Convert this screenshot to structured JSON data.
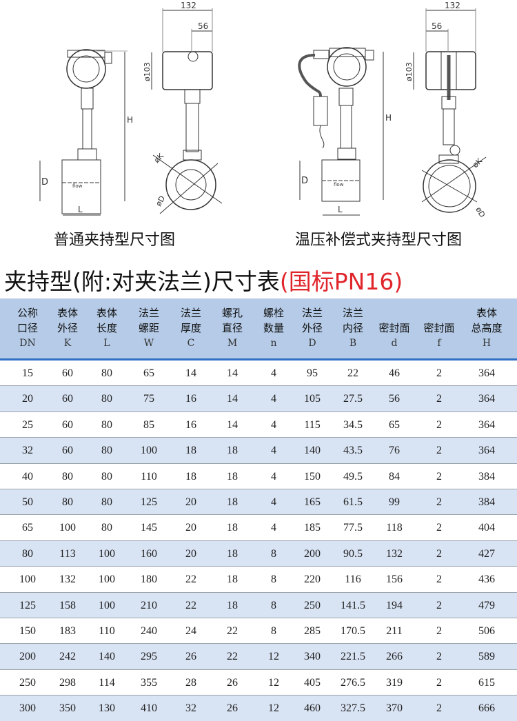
{
  "drawings": {
    "left_caption": "普通夹持型尺寸图",
    "right_caption": "温压补偿式夹持型尺寸图",
    "labels": {
      "width_total": "132",
      "width_part": "56",
      "head_dia": "ø103",
      "height": "H",
      "dia_d": "D",
      "length": "L",
      "dia_k": "øK",
      "dia_flange": "øD",
      "flow": "flow"
    }
  },
  "title": {
    "main": "夹持型(附:对夹法兰)尺寸表",
    "standard": "(国标PN16)",
    "standard_color": "#e0252b"
  },
  "table": {
    "header_bg": "#b5cbe7",
    "alt_row_bg": "#d8e3f3",
    "columns": [
      {
        "line1": "公称",
        "line2": "口径",
        "symbol": "DN"
      },
      {
        "line1": "表体",
        "line2": "外径",
        "symbol": "K"
      },
      {
        "line1": "表体",
        "line2": "长度",
        "symbol": "L"
      },
      {
        "line1": "法兰",
        "line2": "螺距",
        "symbol": "W"
      },
      {
        "line1": "法兰",
        "line2": "厚度",
        "symbol": "C"
      },
      {
        "line1": "螺孔",
        "line2": "直径",
        "symbol": "M"
      },
      {
        "line1": "螺栓",
        "line2": "数量",
        "symbol": "n"
      },
      {
        "line1": "法兰",
        "line2": "外径",
        "symbol": "D"
      },
      {
        "line1": "法兰",
        "line2": "内径",
        "symbol": "B"
      },
      {
        "line1": "",
        "line2": "密封面",
        "symbol": "d"
      },
      {
        "line1": "",
        "line2": "密封面",
        "symbol": "f"
      },
      {
        "line1": "表体",
        "line2": "总高度",
        "symbol": "H"
      }
    ],
    "rows": [
      [
        "15",
        "60",
        "80",
        "65",
        "14",
        "14",
        "4",
        "95",
        "22",
        "46",
        "2",
        "364"
      ],
      [
        "20",
        "60",
        "80",
        "75",
        "16",
        "14",
        "4",
        "105",
        "27.5",
        "56",
        "2",
        "364"
      ],
      [
        "25",
        "60",
        "80",
        "85",
        "16",
        "14",
        "4",
        "115",
        "34.5",
        "65",
        "2",
        "364"
      ],
      [
        "32",
        "60",
        "80",
        "100",
        "18",
        "18",
        "4",
        "140",
        "43.5",
        "76",
        "2",
        "364"
      ],
      [
        "40",
        "80",
        "80",
        "110",
        "18",
        "18",
        "4",
        "150",
        "49.5",
        "84",
        "2",
        "384"
      ],
      [
        "50",
        "80",
        "80",
        "125",
        "20",
        "18",
        "4",
        "165",
        "61.5",
        "99",
        "2",
        "384"
      ],
      [
        "65",
        "100",
        "80",
        "145",
        "20",
        "18",
        "4",
        "185",
        "77.5",
        "118",
        "2",
        "404"
      ],
      [
        "80",
        "113",
        "100",
        "160",
        "20",
        "18",
        "8",
        "200",
        "90.5",
        "132",
        "2",
        "427"
      ],
      [
        "100",
        "132",
        "100",
        "180",
        "22",
        "18",
        "8",
        "220",
        "116",
        "156",
        "2",
        "436"
      ],
      [
        "125",
        "158",
        "100",
        "210",
        "22",
        "18",
        "8",
        "250",
        "141.5",
        "194",
        "2",
        "479"
      ],
      [
        "150",
        "183",
        "110",
        "240",
        "24",
        "22",
        "8",
        "285",
        "170.5",
        "211",
        "2",
        "506"
      ],
      [
        "200",
        "242",
        "140",
        "295",
        "26",
        "22",
        "12",
        "340",
        "221.5",
        "266",
        "2",
        "589"
      ],
      [
        "250",
        "298",
        "114",
        "355",
        "28",
        "26",
        "12",
        "405",
        "276.5",
        "319",
        "2",
        "615"
      ],
      [
        "300",
        "350",
        "130",
        "410",
        "32",
        "26",
        "12",
        "460",
        "327.5",
        "370",
        "2",
        "666"
      ]
    ]
  }
}
